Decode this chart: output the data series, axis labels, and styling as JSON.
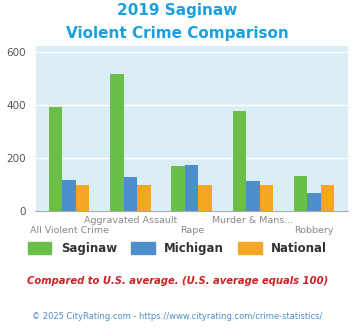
{
  "title_line1": "2019 Saginaw",
  "title_line2": "Violent Crime Comparison",
  "title_color": "#1a9fdf",
  "categories": [
    "All Violent Crime",
    "Aggravated Assault",
    "Rape",
    "Murder & Mans...",
    "Robbery"
  ],
  "series": {
    "Saginaw": [
      390,
      515,
      168,
      378,
      132
    ],
    "Michigan": [
      118,
      128,
      173,
      113,
      68
    ],
    "National": [
      100,
      100,
      100,
      100,
      100
    ]
  },
  "colors": {
    "Saginaw": "#6abf4b",
    "Michigan": "#4d8fcc",
    "National": "#f5a623"
  },
  "ylim": [
    0,
    620
  ],
  "yticks": [
    0,
    200,
    400,
    600
  ],
  "plot_bg": "#dceef5",
  "grid_color": "#ffffff",
  "footnote1": "Compared to U.S. average. (U.S. average equals 100)",
  "footnote2": "© 2025 CityRating.com - https://www.cityrating.com/crime-statistics/",
  "footnote1_color": "#cc2222",
  "footnote2_color": "#4d8fcc",
  "bar_width": 0.22
}
